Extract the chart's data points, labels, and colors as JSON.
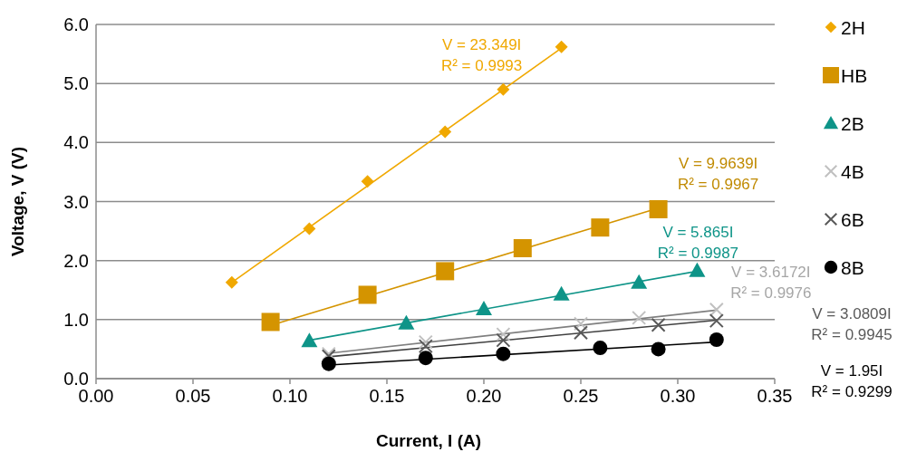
{
  "chart_data": {
    "type": "scatter",
    "xlabel": "Current, I (A)",
    "ylabel": "Voltage, V (V)",
    "xlim": [
      0,
      0.35
    ],
    "ylim": [
      0,
      6
    ],
    "xticks": [
      {
        "value": 0,
        "label": "0.00"
      },
      {
        "value": 0.05,
        "label": "0.05"
      },
      {
        "value": 0.1,
        "label": "0.10"
      },
      {
        "value": 0.15,
        "label": "0.15"
      },
      {
        "value": 0.2,
        "label": "0.20"
      },
      {
        "value": 0.25,
        "label": "0.25"
      },
      {
        "value": 0.3,
        "label": "0.30"
      },
      {
        "value": 0.35,
        "label": "0.35"
      }
    ],
    "yticks": [
      {
        "value": 0,
        "label": "0.0"
      },
      {
        "value": 1,
        "label": "1.0"
      },
      {
        "value": 2,
        "label": "2.0"
      },
      {
        "value": 3,
        "label": "3.0"
      },
      {
        "value": 4,
        "label": "4.0"
      },
      {
        "value": 5,
        "label": "5.0"
      },
      {
        "value": 6,
        "label": "6.0"
      }
    ],
    "grid": "y",
    "legend": "right",
    "series": [
      {
        "name": "2H",
        "color": "#f0a800",
        "marker": "diamond",
        "x": [
          0.07,
          0.11,
          0.14,
          0.18,
          0.21,
          0.24
        ],
        "values": [
          1.63,
          2.54,
          3.34,
          4.18,
          4.9,
          5.62
        ]
      },
      {
        "name": "HB",
        "color": "#d49400",
        "marker": "square",
        "x": [
          0.09,
          0.14,
          0.18,
          0.22,
          0.26,
          0.29
        ],
        "values": [
          0.96,
          1.42,
          1.82,
          2.21,
          2.56,
          2.87
        ]
      },
      {
        "name": "2B",
        "color": "#0e9488",
        "marker": "triangle",
        "x": [
          0.11,
          0.16,
          0.2,
          0.24,
          0.28,
          0.31
        ],
        "values": [
          0.64,
          0.94,
          1.18,
          1.43,
          1.63,
          1.83
        ]
      },
      {
        "name": "4B",
        "color": "#c0c0c0",
        "marker": "cross",
        "x": [
          0.12,
          0.17,
          0.21,
          0.25,
          0.28,
          0.32
        ],
        "values": [
          0.42,
          0.62,
          0.75,
          0.93,
          1.03,
          1.17
        ]
      },
      {
        "name": "6B",
        "color": "#595959",
        "marker": "cross",
        "x": [
          0.12,
          0.17,
          0.21,
          0.25,
          0.29,
          0.32
        ],
        "values": [
          0.38,
          0.55,
          0.65,
          0.78,
          0.91,
          0.98
        ]
      },
      {
        "name": "8B",
        "color": "#000000",
        "marker": "circle",
        "x": [
          0.12,
          0.17,
          0.21,
          0.26,
          0.29,
          0.32
        ],
        "values": [
          0.25,
          0.35,
          0.42,
          0.52,
          0.5,
          0.66
        ]
      },
      {
        "type": "line",
        "color": "#f0a800",
        "x": [
          0.07,
          0.24
        ],
        "values": [
          1.63,
          5.6
        ]
      },
      {
        "type": "line",
        "color": "#d49400",
        "x": [
          0.09,
          0.29
        ],
        "values": [
          0.9,
          2.89
        ]
      },
      {
        "type": "line",
        "color": "#0e9488",
        "x": [
          0.11,
          0.31
        ],
        "values": [
          0.65,
          1.82
        ]
      },
      {
        "type": "line",
        "color": "#7f7f7f",
        "x": [
          0.12,
          0.32
        ],
        "values": [
          0.43,
          1.16
        ]
      },
      {
        "type": "line",
        "color": "#404040",
        "x": [
          0.12,
          0.32
        ],
        "values": [
          0.37,
          0.99
        ]
      },
      {
        "type": "line",
        "color": "#000000",
        "x": [
          0.12,
          0.32
        ],
        "values": [
          0.23,
          0.62
        ]
      }
    ],
    "annotations": [
      {
        "text": "V = 23.349I\nR² = 0.9993",
        "x": 0.24,
        "y": 5.604
      },
      {
        "text": "V = 9.9639I\nR² = 0.9967",
        "x": 0.29,
        "y": 2.89
      },
      {
        "text": "V = 5.865I\nR² = 0.9987",
        "x": 0.31,
        "y": 1.818
      },
      {
        "text": "V = 3.6172I\nR² = 0.9976",
        "x": 0.32,
        "y": 1.157
      },
      "V = 3.0809I\nR² = 0.9945",
      "V = 1.95I\nR² = 0.9299"
    ]
  }
}
